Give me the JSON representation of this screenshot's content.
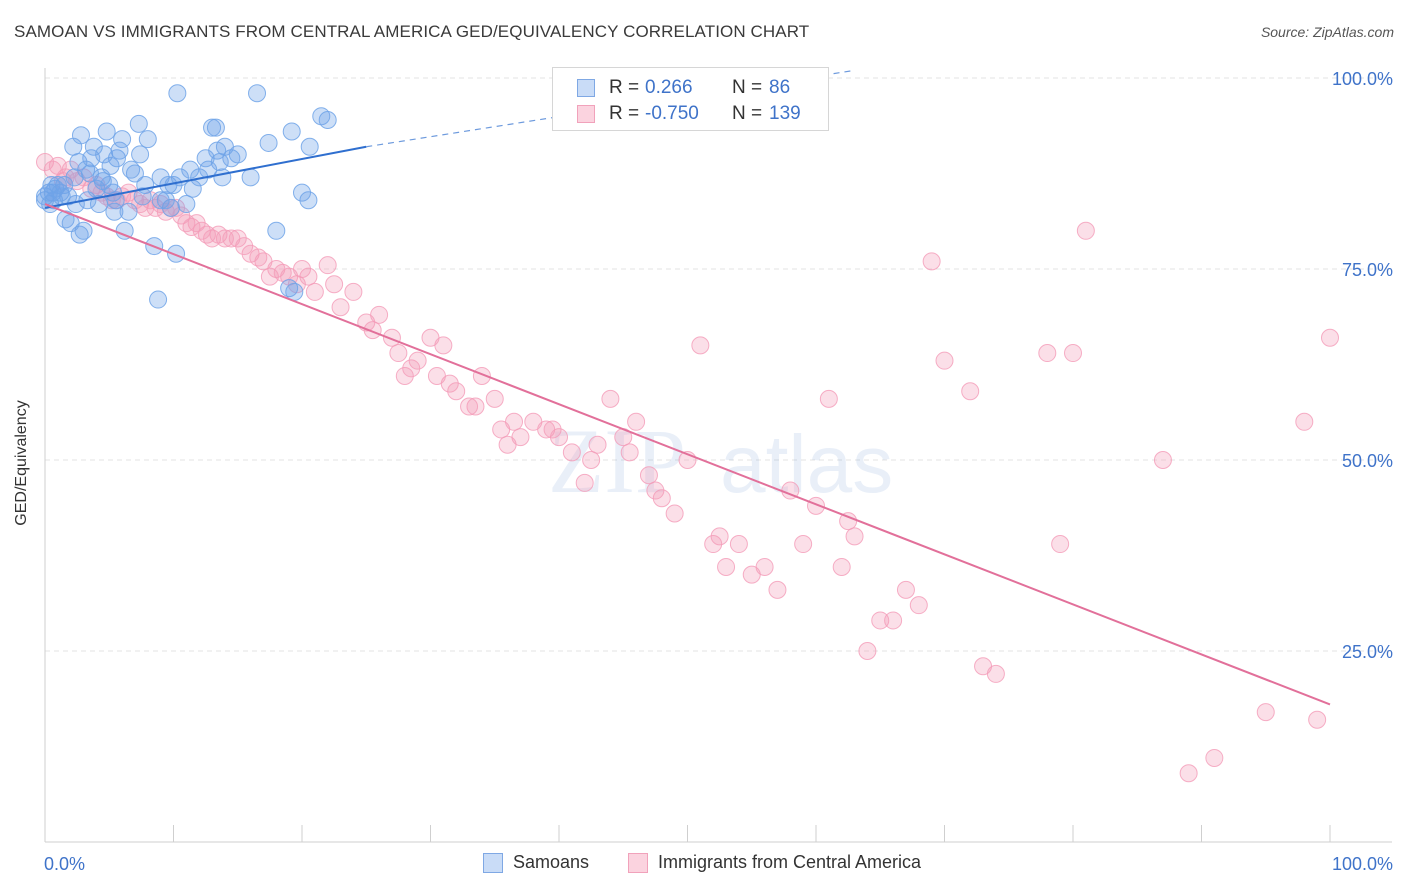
{
  "header": {
    "title": "SAMOAN VS IMMIGRANTS FROM CENTRAL AMERICA GED/EQUIVALENCY CORRELATION CHART",
    "source": "Source: ZipAtlas.com"
  },
  "legend": {
    "rows": [
      {
        "r_label": "R =",
        "r_value": "0.266",
        "n_label": "N =",
        "n_value": "86",
        "color": "#8ab4ef"
      },
      {
        "r_label": "R =",
        "r_value": "-0.750",
        "n_label": "N =",
        "n_value": "139",
        "color": "#f4a6be"
      }
    ]
  },
  "bottom_legend": {
    "items": [
      {
        "label": "Samoans",
        "color": "#8ab4ef"
      },
      {
        "label": "Immigrants from Central America",
        "color": "#f4a6be"
      }
    ]
  },
  "watermark": {
    "zip": "ZIP",
    "atlas": "atlas"
  },
  "chart_data": {
    "type": "scatter",
    "title": "SAMOAN VS IMMIGRANTS FROM CENTRAL AMERICA GED/EQUIVALENCY CORRELATION CHART",
    "xlabel": "",
    "ylabel": "GED/Equivalency",
    "xlim": [
      0,
      100
    ],
    "ylim": [
      0,
      100
    ],
    "x_tick_labels": [
      "0.0%",
      "100.0%"
    ],
    "y_tick_labels": [
      "25.0%",
      "50.0%",
      "75.0%",
      "100.0%"
    ],
    "y_ticks": [
      25,
      50,
      75,
      100
    ],
    "grid": true,
    "legend_position": "top-center",
    "series": [
      {
        "name": "Samoans",
        "color": "#6fa3e8",
        "line_color": "#2f6fcf",
        "trend": {
          "x0": 0,
          "y0": 83.0,
          "x1": 25,
          "y1": 91.0,
          "dash_to_x": 63,
          "dash_to_y": 101
        },
        "points": [
          [
            0,
            84.5
          ],
          [
            0,
            84
          ],
          [
            0.3,
            85
          ],
          [
            0.4,
            83.5
          ],
          [
            0.5,
            86
          ],
          [
            0.6,
            85
          ],
          [
            0.7,
            84
          ],
          [
            0.8,
            85.5
          ],
          [
            1,
            86
          ],
          [
            1.2,
            85
          ],
          [
            1.3,
            84.5
          ],
          [
            1.5,
            86
          ],
          [
            1.6,
            81.5
          ],
          [
            1.8,
            84.5
          ],
          [
            2,
            81
          ],
          [
            2.2,
            91
          ],
          [
            2.3,
            87
          ],
          [
            2.4,
            83.5
          ],
          [
            2.6,
            89
          ],
          [
            2.7,
            79.5
          ],
          [
            2.8,
            92.5
          ],
          [
            3,
            80
          ],
          [
            3.2,
            88
          ],
          [
            3.3,
            84
          ],
          [
            3.5,
            87.5
          ],
          [
            3.6,
            89.5
          ],
          [
            3.8,
            91
          ],
          [
            4,
            85.5
          ],
          [
            4.2,
            83.5
          ],
          [
            4.4,
            87
          ],
          [
            4.5,
            86.5
          ],
          [
            4.6,
            90
          ],
          [
            4.8,
            93
          ],
          [
            5,
            86
          ],
          [
            5.1,
            88.5
          ],
          [
            5.3,
            85
          ],
          [
            5.4,
            82.5
          ],
          [
            5.5,
            84
          ],
          [
            5.6,
            89.5
          ],
          [
            5.8,
            90.5
          ],
          [
            6,
            92
          ],
          [
            6.2,
            80
          ],
          [
            6.5,
            82.5
          ],
          [
            6.7,
            88
          ],
          [
            7,
            87.5
          ],
          [
            7.3,
            94
          ],
          [
            7.4,
            90
          ],
          [
            7.6,
            84.5
          ],
          [
            7.8,
            86
          ],
          [
            8,
            92
          ],
          [
            8.5,
            78
          ],
          [
            8.8,
            71
          ],
          [
            9,
            87
          ],
          [
            9,
            84
          ],
          [
            9.4,
            84
          ],
          [
            9.6,
            86
          ],
          [
            9.8,
            83
          ],
          [
            10,
            86
          ],
          [
            10.2,
            77
          ],
          [
            10.3,
            98
          ],
          [
            10.5,
            87
          ],
          [
            11,
            83.5
          ],
          [
            11.3,
            88
          ],
          [
            11.5,
            85.5
          ],
          [
            12,
            87
          ],
          [
            12.5,
            89.5
          ],
          [
            12.7,
            88
          ],
          [
            13,
            93.5
          ],
          [
            13.3,
            93.5
          ],
          [
            13.4,
            90.5
          ],
          [
            13.6,
            89
          ],
          [
            13.8,
            87
          ],
          [
            14,
            91
          ],
          [
            14.5,
            89.5
          ],
          [
            15,
            90
          ],
          [
            16,
            87
          ],
          [
            16.5,
            98
          ],
          [
            17.4,
            91.5
          ],
          [
            18,
            80
          ],
          [
            19.2,
            93
          ],
          [
            19,
            72.5
          ],
          [
            19.4,
            72
          ],
          [
            20,
            85
          ],
          [
            20.5,
            84
          ],
          [
            20.6,
            91
          ],
          [
            21.5,
            95
          ],
          [
            22,
            94.5
          ]
        ]
      },
      {
        "name": "Immigrants from Central America",
        "color": "#f49bb8",
        "line_color": "#e2709a",
        "trend": {
          "x0": 0,
          "y0": 83.5,
          "x1": 100,
          "y1": 18.0
        },
        "points": [
          [
            0,
            89
          ],
          [
            0.6,
            88
          ],
          [
            1,
            88.5
          ],
          [
            1.4,
            86.5
          ],
          [
            1.6,
            87
          ],
          [
            2,
            88
          ],
          [
            2.5,
            86.5
          ],
          [
            3,
            87
          ],
          [
            3.6,
            85.5
          ],
          [
            4,
            86
          ],
          [
            4.4,
            85
          ],
          [
            4.8,
            84.5
          ],
          [
            5.2,
            84
          ],
          [
            5.6,
            84
          ],
          [
            6,
            84.5
          ],
          [
            6.5,
            85
          ],
          [
            7,
            84
          ],
          [
            7.4,
            83.5
          ],
          [
            7.8,
            83
          ],
          [
            8.2,
            84
          ],
          [
            8.6,
            83
          ],
          [
            9,
            83.5
          ],
          [
            9.4,
            82.5
          ],
          [
            9.8,
            83
          ],
          [
            10.2,
            83
          ],
          [
            10.6,
            82
          ],
          [
            11,
            81
          ],
          [
            11.4,
            80.5
          ],
          [
            11.8,
            81
          ],
          [
            12.2,
            80
          ],
          [
            12.6,
            79.5
          ],
          [
            13,
            79
          ],
          [
            13.5,
            79.5
          ],
          [
            14,
            79
          ],
          [
            14.5,
            79
          ],
          [
            15,
            79
          ],
          [
            15.5,
            78
          ],
          [
            16,
            77
          ],
          [
            16.6,
            76.5
          ],
          [
            17,
            76
          ],
          [
            17.5,
            74
          ],
          [
            18,
            75
          ],
          [
            18.5,
            74.5
          ],
          [
            19,
            74
          ],
          [
            19.6,
            73
          ],
          [
            20,
            75
          ],
          [
            20.5,
            74
          ],
          [
            21,
            72
          ],
          [
            22,
            75.5
          ],
          [
            22.5,
            73
          ],
          [
            23,
            70
          ],
          [
            24,
            72
          ],
          [
            25,
            68
          ],
          [
            25.5,
            67
          ],
          [
            26,
            69
          ],
          [
            27,
            66
          ],
          [
            27.5,
            64
          ],
          [
            28,
            61
          ],
          [
            28.5,
            62
          ],
          [
            29,
            63
          ],
          [
            30,
            66
          ],
          [
            30.5,
            61
          ],
          [
            31,
            65
          ],
          [
            31.5,
            60
          ],
          [
            32,
            59
          ],
          [
            33,
            57
          ],
          [
            33.5,
            57
          ],
          [
            34,
            61
          ],
          [
            35,
            58
          ],
          [
            35.5,
            54
          ],
          [
            36,
            52
          ],
          [
            36.5,
            55
          ],
          [
            37,
            53
          ],
          [
            38,
            55
          ],
          [
            39,
            54
          ],
          [
            39.5,
            54
          ],
          [
            40,
            53
          ],
          [
            41,
            51
          ],
          [
            42,
            47
          ],
          [
            42.5,
            50
          ],
          [
            43,
            52
          ],
          [
            44,
            58
          ],
          [
            45,
            53
          ],
          [
            45.5,
            51
          ],
          [
            46,
            55
          ],
          [
            47,
            48
          ],
          [
            47.5,
            46
          ],
          [
            48,
            45
          ],
          [
            49,
            43
          ],
          [
            50,
            50
          ],
          [
            51,
            65
          ],
          [
            52,
            39
          ],
          [
            52.5,
            40
          ],
          [
            53,
            36
          ],
          [
            54,
            39
          ],
          [
            55,
            35
          ],
          [
            56,
            36
          ],
          [
            57,
            33
          ],
          [
            58,
            46
          ],
          [
            59,
            39
          ],
          [
            60,
            44
          ],
          [
            61,
            58
          ],
          [
            62,
            36
          ],
          [
            62.5,
            42
          ],
          [
            63,
            40
          ],
          [
            64,
            25
          ],
          [
            65,
            29
          ],
          [
            66,
            29
          ],
          [
            67,
            33
          ],
          [
            68,
            31
          ],
          [
            69,
            76
          ],
          [
            70,
            63
          ],
          [
            72,
            59
          ],
          [
            73,
            23
          ],
          [
            74,
            22
          ],
          [
            78,
            64
          ],
          [
            79,
            39
          ],
          [
            80,
            64
          ],
          [
            81,
            80
          ],
          [
            87,
            50
          ],
          [
            89,
            9
          ],
          [
            91,
            11
          ],
          [
            95,
            17
          ],
          [
            98,
            55
          ],
          [
            99,
            16
          ],
          [
            100,
            66
          ]
        ]
      }
    ]
  }
}
